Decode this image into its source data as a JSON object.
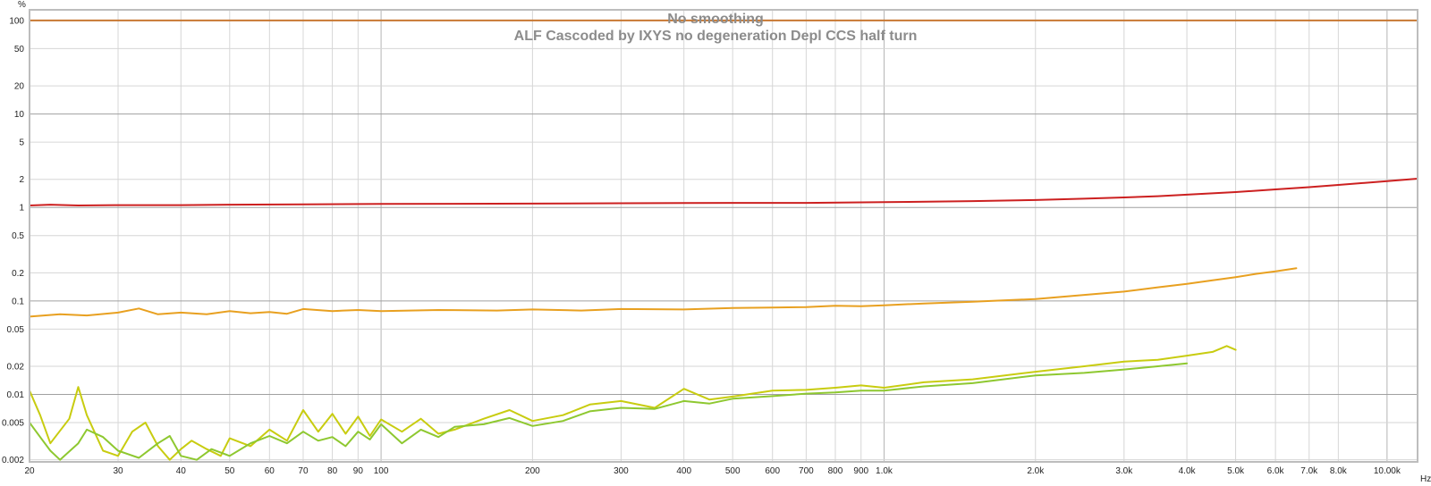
{
  "chart_data": {
    "type": "line",
    "title": "No smoothing",
    "subtitle": "ALF Cascoded by IXYS no degeneration Depl CCS half turn",
    "x_unit": "Hz",
    "y_unit": "%",
    "x_scale": "log",
    "y_scale": "log",
    "xlim": [
      20,
      11500
    ],
    "ylim": [
      0.0019,
      130
    ],
    "grid": true,
    "x_ticks": [
      20,
      30,
      40,
      50,
      60,
      70,
      80,
      90,
      100,
      200,
      300,
      400,
      500,
      600,
      700,
      800,
      900,
      1000,
      2000,
      3000,
      4000,
      5000,
      6000,
      7000,
      8000,
      10000
    ],
    "x_tick_labels": [
      "20",
      "30",
      "40",
      "50",
      "60",
      "70",
      "80",
      "90",
      "100",
      "200",
      "300",
      "400",
      "500",
      "600",
      "700",
      "800",
      "900",
      "1.0k",
      "2.0k",
      "3.0k",
      "4.0k",
      "5.0k",
      "6.0k",
      "7.0k",
      "8.0k",
      "10.00k"
    ],
    "y_ticks": [
      100,
      50,
      20,
      10,
      5,
      2,
      1,
      0.5,
      0.2,
      0.1,
      0.05,
      0.02,
      0.01,
      0.005,
      0.002
    ],
    "y_tick_labels": [
      "100",
      "50",
      "20",
      "10",
      "5",
      "2",
      "1",
      "0.5",
      "0.2",
      "0.1",
      "0.05",
      "0.02",
      "0.01",
      "0.005",
      "0.002"
    ],
    "series": [
      {
        "color": "#c87832",
        "x": [
          20,
          11500
        ],
        "y": [
          100,
          100
        ]
      },
      {
        "color": "#cc2020",
        "x": [
          20,
          22,
          25,
          30,
          40,
          50,
          70,
          100,
          200,
          300,
          500,
          700,
          1000,
          1500,
          2000,
          2500,
          3000,
          3500,
          4000,
          5000,
          6000,
          7000,
          8000,
          10000,
          11500
        ],
        "y": [
          1.05,
          1.07,
          1.05,
          1.06,
          1.06,
          1.07,
          1.08,
          1.09,
          1.1,
          1.11,
          1.12,
          1.12,
          1.14,
          1.17,
          1.2,
          1.24,
          1.28,
          1.32,
          1.37,
          1.46,
          1.56,
          1.65,
          1.74,
          1.91,
          2.03
        ]
      },
      {
        "color": "#e8a020",
        "x": [
          20,
          23,
          26,
          30,
          33,
          36,
          40,
          45,
          50,
          55,
          60,
          65,
          70,
          80,
          90,
          100,
          130,
          170,
          200,
          250,
          300,
          400,
          500,
          600,
          700,
          800,
          900,
          1000,
          1200,
          1500,
          2000,
          2500,
          3000,
          3500,
          4000,
          4500,
          5000,
          5500,
          6000,
          6600
        ],
        "y": [
          0.068,
          0.072,
          0.07,
          0.075,
          0.083,
          0.072,
          0.075,
          0.072,
          0.078,
          0.074,
          0.076,
          0.073,
          0.082,
          0.078,
          0.08,
          0.078,
          0.08,
          0.079,
          0.081,
          0.079,
          0.082,
          0.081,
          0.084,
          0.085,
          0.086,
          0.089,
          0.088,
          0.09,
          0.094,
          0.098,
          0.105,
          0.116,
          0.126,
          0.14,
          0.152,
          0.166,
          0.18,
          0.195,
          0.207,
          0.224
        ]
      },
      {
        "color": "#c8cc10",
        "x": [
          20,
          21,
          22,
          24,
          25,
          26,
          28,
          30,
          32,
          34,
          36,
          38,
          40,
          42,
          45,
          48,
          50,
          55,
          60,
          65,
          70,
          75,
          80,
          85,
          90,
          95,
          100,
          110,
          120,
          130,
          140,
          160,
          180,
          200,
          230,
          260,
          300,
          350,
          400,
          450,
          500,
          600,
          700,
          800,
          900,
          1000,
          1200,
          1500,
          2000,
          2500,
          3000,
          3500,
          4000,
          4500,
          4800,
          5000
        ],
        "y": [
          0.011,
          0.006,
          0.003,
          0.0055,
          0.012,
          0.006,
          0.0025,
          0.0022,
          0.004,
          0.005,
          0.0028,
          0.002,
          0.0026,
          0.0032,
          0.0026,
          0.0022,
          0.0034,
          0.0028,
          0.0042,
          0.0032,
          0.0068,
          0.004,
          0.0062,
          0.0038,
          0.0058,
          0.0036,
          0.0054,
          0.004,
          0.0055,
          0.0038,
          0.0042,
          0.0055,
          0.0068,
          0.0052,
          0.006,
          0.0078,
          0.0085,
          0.0072,
          0.0115,
          0.0088,
          0.0095,
          0.011,
          0.0112,
          0.0118,
          0.0125,
          0.0118,
          0.0135,
          0.0145,
          0.0175,
          0.02,
          0.0225,
          0.0235,
          0.026,
          0.0285,
          0.033,
          0.03
        ]
      },
      {
        "color": "#8ec830",
        "x": [
          20,
          21,
          22,
          23,
          25,
          26,
          28,
          30,
          33,
          36,
          38,
          40,
          43,
          46,
          50,
          55,
          60,
          65,
          70,
          75,
          80,
          85,
          90,
          95,
          100,
          110,
          120,
          130,
          140,
          160,
          180,
          200,
          230,
          260,
          300,
          350,
          400,
          450,
          500,
          600,
          700,
          800,
          900,
          1000,
          1200,
          1500,
          2000,
          2500,
          3000,
          3500,
          4000
        ],
        "y": [
          0.005,
          0.0035,
          0.0025,
          0.002,
          0.003,
          0.0042,
          0.0035,
          0.0025,
          0.0021,
          0.003,
          0.0036,
          0.0022,
          0.002,
          0.0026,
          0.0022,
          0.003,
          0.0036,
          0.003,
          0.004,
          0.0032,
          0.0035,
          0.0028,
          0.004,
          0.0033,
          0.0048,
          0.003,
          0.0042,
          0.0035,
          0.0045,
          0.0048,
          0.0056,
          0.0046,
          0.0052,
          0.0066,
          0.0072,
          0.007,
          0.0085,
          0.008,
          0.009,
          0.0096,
          0.0102,
          0.0105,
          0.011,
          0.011,
          0.0122,
          0.0132,
          0.016,
          0.017,
          0.0185,
          0.02,
          0.0215
        ]
      }
    ]
  }
}
